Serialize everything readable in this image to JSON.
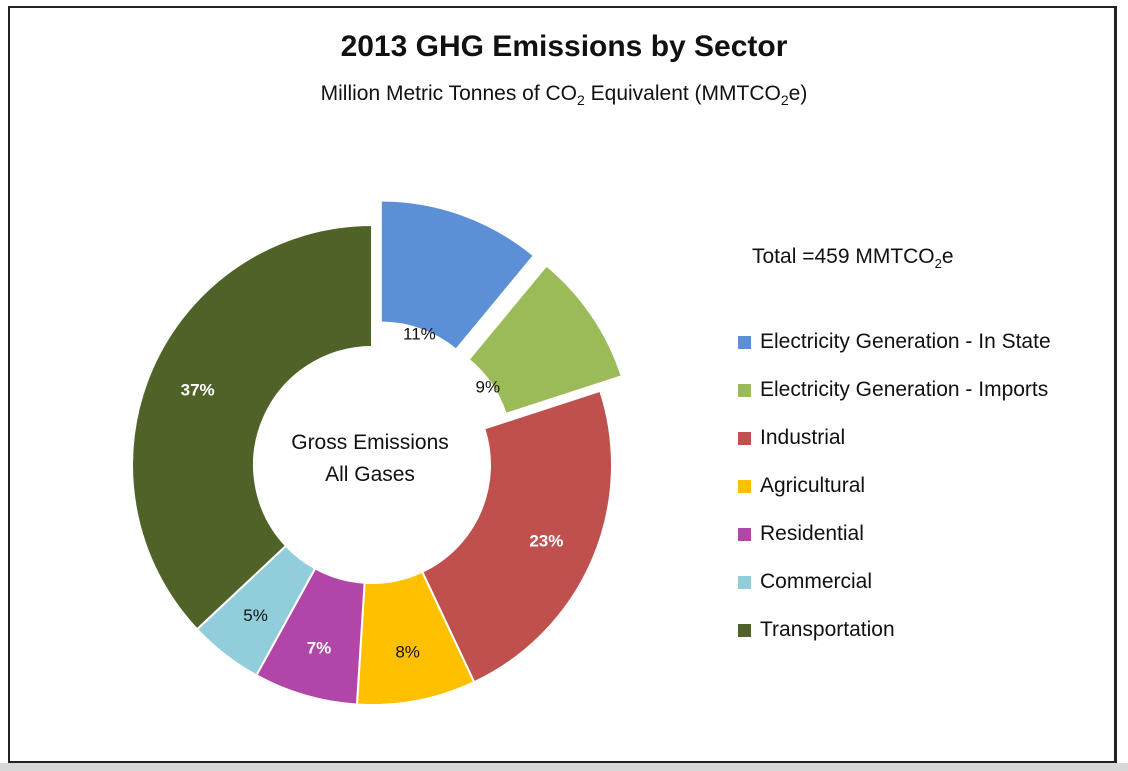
{
  "chart_data": {
    "type": "pie",
    "title": "2013 GHG Emissions by Sector",
    "subtitle": {
      "before": "Million Metric Tonnes of CO",
      "sub1": "2",
      "middle": " Equivalent (MMTCO",
      "sub2": "2",
      "after": "e)"
    },
    "total": {
      "before": "Total =459 MMTCO",
      "sub": "2",
      "after": "e"
    },
    "center_label": [
      "Gross Emissions",
      "All Gases"
    ],
    "slices": [
      {
        "name": "Electricity Generation - In State",
        "value": 11,
        "label": "11%",
        "color": "#5b8fd6",
        "label_color": "#111111",
        "exploded": true
      },
      {
        "name": "Electricity Generation - Imports",
        "value": 9,
        "label": "9%",
        "color": "#9bbb59",
        "label_color": "#111111",
        "exploded": true
      },
      {
        "name": "Industrial",
        "value": 23,
        "label": "23%",
        "color": "#c0504d",
        "label_color": "#ffffff",
        "exploded": false
      },
      {
        "name": "Agricultural",
        "value": 8,
        "label": "8%",
        "color": "#ffc000",
        "label_color": "#111111",
        "exploded": false
      },
      {
        "name": "Residential",
        "value": 7,
        "label": "7%",
        "color": "#b145a8",
        "label_color": "#ffffff",
        "exploded": false
      },
      {
        "name": "Commercial",
        "value": 5,
        "label": "5%",
        "color": "#92cddc",
        "label_color": "#111111",
        "exploded": false
      },
      {
        "name": "Transportation",
        "value": 37,
        "label": "37%",
        "color": "#4f6228",
        "label_color": "#ffffff",
        "exploded": false
      }
    ],
    "legend": [
      " Electricity Generation - In State",
      " Electricity Generation - Imports",
      " Industrial",
      "  Agricultural",
      " Residential",
      " Commercial",
      " Transportation"
    ]
  }
}
